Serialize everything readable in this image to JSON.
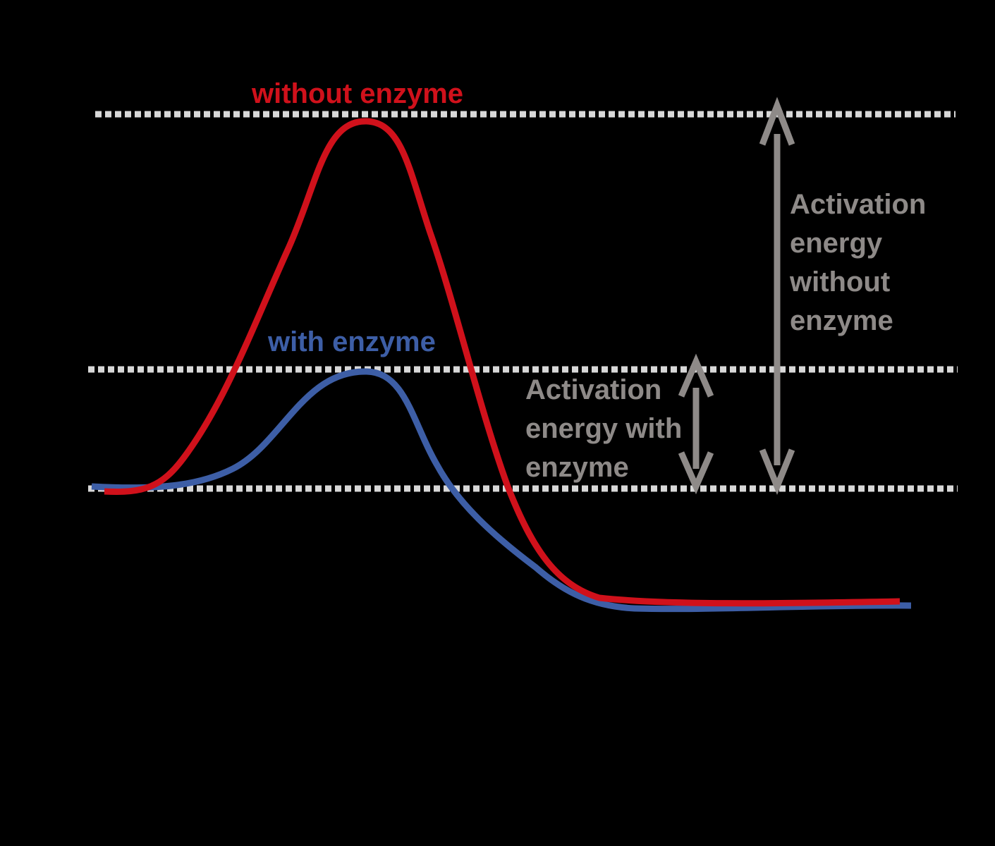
{
  "labels": {
    "without_enzyme": "without enzyme",
    "with_enzyme": "with enzyme",
    "activation_without": [
      "Activation",
      "energy",
      "without",
      "enzyme"
    ],
    "activation_with": [
      "Activation",
      "energy with",
      "enzyme"
    ]
  },
  "colors": {
    "background": "#000000",
    "without_enzyme": "#d0111b",
    "with_enzyme": "#3d5ea6",
    "annotation": "#8e8a88",
    "dotted_line": "#d8d8d8"
  }
}
